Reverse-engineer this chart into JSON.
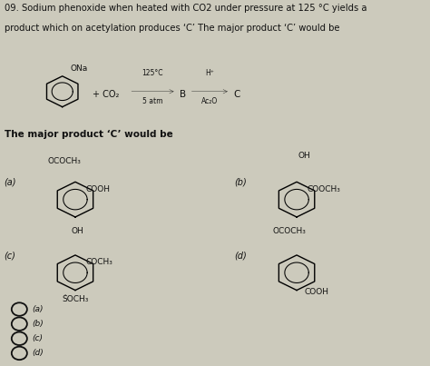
{
  "title_line1": "09. Sodium phenoxide when heated with CO2 under pressure at 125 °C yields a",
  "title_line2": "product which on acetylation produces ‘C’ The major product ‘C’ would be",
  "reaction_text": "+ CO₂",
  "step1_top": "125°C",
  "step1_bottom": "5 atm",
  "step2_top": "H⁺",
  "step2_bottom": "Ac₂O",
  "arrow_B": "B",
  "arrow_C": "C",
  "ONa_label": "ONa",
  "major_product_text": "The major product ‘C’ would be",
  "option_a_label": "(a)",
  "option_b_label": "(b)",
  "option_c_label": "(c)",
  "option_d_label": "(d)",
  "a_sub1": "OCOCH₃",
  "a_sub2": "COOH",
  "b_sub1": "OH",
  "b_sub2": "COOCH₃",
  "c_sub1": "OH",
  "c_sub2": "COCH₃",
  "c_sub3": "ṠOCH₃",
  "d_sub1": "OCOCH₃",
  "d_sub2": "COOH",
  "bg_color": "#cccabc",
  "text_color": "#111111",
  "circle_color": "#111111",
  "radio_options": [
    "(a)",
    "(b)",
    "(c)",
    "(d)"
  ]
}
